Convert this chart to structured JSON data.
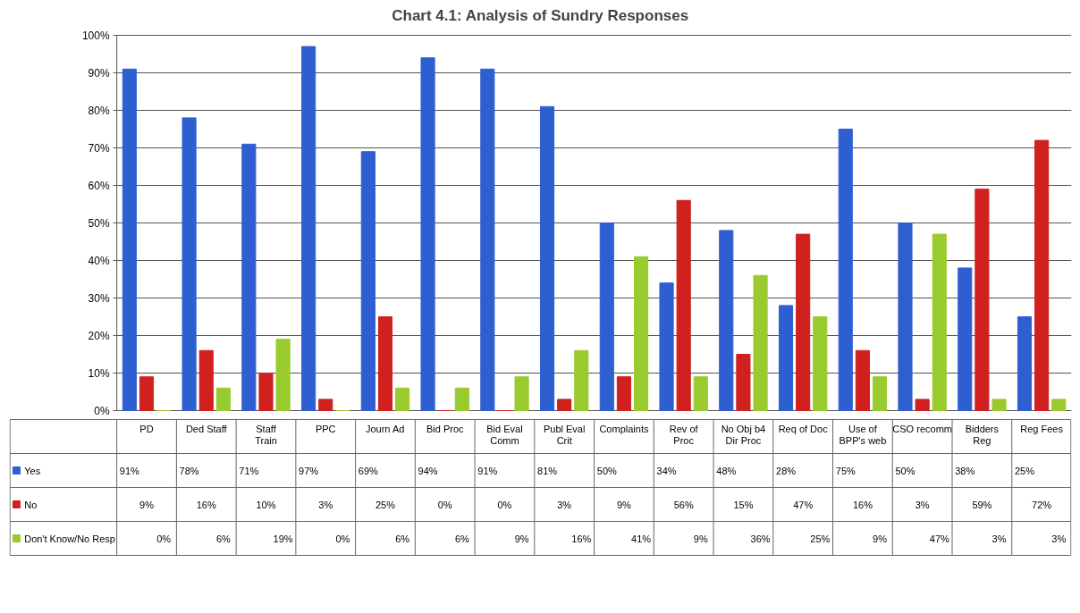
{
  "chart_data": {
    "type": "bar",
    "title": "Chart 4.1: Analysis of Sundry Responses",
    "categories": [
      "PD",
      "Ded Staff",
      "Staff Train",
      "PPC",
      "Journ Ad",
      "Bid Proc",
      "Bid Eval Comm",
      "Publ Eval Crit",
      "Complaints",
      "Rev of Proc",
      "No Obj b4 Dir Proc",
      "Req of Doc",
      "Use of BPP's web",
      "CSO recomm",
      "Bidders Reg",
      "Reg Fees"
    ],
    "series": [
      {
        "name": "Yes",
        "color": "#2e5fd1",
        "values": [
          91,
          78,
          71,
          97,
          69,
          94,
          91,
          81,
          50,
          34,
          48,
          28,
          75,
          50,
          38,
          25
        ],
        "value_labels": [
          "91%",
          "78%",
          "71%",
          "97%",
          "69%",
          "94%",
          "91%",
          "81%",
          "50%",
          "34%",
          "48%",
          "28%",
          "75%",
          "50%",
          "38%",
          "25%"
        ]
      },
      {
        "name": "No",
        "color": "#d0211f",
        "values": [
          9,
          16,
          10,
          3,
          25,
          0,
          0,
          3,
          9,
          56,
          15,
          47,
          16,
          3,
          59,
          72
        ],
        "value_labels": [
          "9%",
          "16%",
          "10%",
          "3%",
          "25%",
          "0%",
          "0%",
          "3%",
          "9%",
          "56%",
          "15%",
          "47%",
          "16%",
          "3%",
          "59%",
          "72%"
        ]
      },
      {
        "name": "Don't Know/No Resp",
        "color": "#9acb2e",
        "values": [
          0,
          6,
          19,
          0,
          6,
          6,
          9,
          16,
          41,
          9,
          36,
          25,
          9,
          47,
          3,
          3
        ],
        "value_labels": [
          "0%",
          "6%",
          "19%",
          "0%",
          "6%",
          "6%",
          "9%",
          "16%",
          "41%",
          "9%",
          "36%",
          "25%",
          "9%",
          "47%",
          "3%",
          "3%"
        ]
      }
    ],
    "ylim": [
      0,
      100
    ],
    "yticks": [
      {
        "value": 0,
        "label": "0%"
      },
      {
        "value": 10,
        "label": "10%"
      },
      {
        "value": 20,
        "label": "20%"
      },
      {
        "value": 30,
        "label": "30%"
      },
      {
        "value": 40,
        "label": "40%"
      },
      {
        "value": 50,
        "label": "50%"
      },
      {
        "value": 60,
        "label": "60%"
      },
      {
        "value": 70,
        "label": "70%"
      },
      {
        "value": 80,
        "label": "80%"
      },
      {
        "value": 90,
        "label": "90%"
      },
      {
        "value": 100,
        "label": "100%"
      }
    ],
    "grid": "y",
    "legend": "bottom"
  }
}
